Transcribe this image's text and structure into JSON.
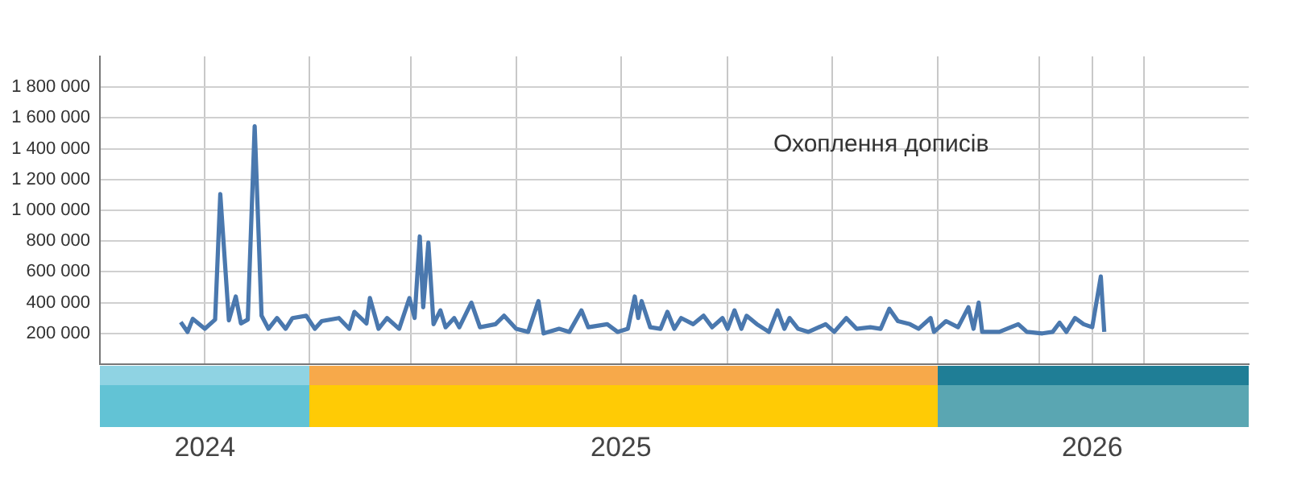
{
  "chart_data": {
    "type": "line",
    "title": "Охоплення дописів",
    "x": [
      "2024-10-18",
      "2024-10-22",
      "2024-10-25",
      "2024-11-01",
      "2024-11-07",
      "2024-11-10",
      "2024-11-15",
      "2024-11-19",
      "2024-11-22",
      "2024-11-26",
      "2024-11-30",
      "2024-12-04",
      "2024-12-08",
      "2024-12-13",
      "2024-12-18",
      "2024-12-22",
      "2024-12-30",
      "2025-01-04",
      "2025-01-08",
      "2025-01-18",
      "2025-01-24",
      "2025-01-27",
      "2025-02-03",
      "2025-02-05",
      "2025-02-10",
      "2025-02-15",
      "2025-02-22",
      "2025-02-28",
      "2025-03-03",
      "2025-03-06",
      "2025-03-08",
      "2025-03-11",
      "2025-03-14",
      "2025-03-18",
      "2025-03-21",
      "2025-03-26",
      "2025-03-29",
      "2025-04-05",
      "2025-04-10",
      "2025-04-19",
      "2025-04-24",
      "2025-05-01",
      "2025-05-08",
      "2025-05-14",
      "2025-05-17",
      "2025-05-26",
      "2025-06-01",
      "2025-06-08",
      "2025-06-12",
      "2025-06-23",
      "2025-06-29",
      "2025-07-05",
      "2025-07-09",
      "2025-07-11",
      "2025-07-13",
      "2025-07-18",
      "2025-07-24",
      "2025-07-28",
      "2025-08-01",
      "2025-08-05",
      "2025-08-12",
      "2025-08-18",
      "2025-08-23",
      "2025-08-29",
      "2025-09-01",
      "2025-09-05",
      "2025-09-09",
      "2025-09-12",
      "2025-09-18",
      "2025-09-25",
      "2025-09-30",
      "2025-10-04",
      "2025-10-07",
      "2025-10-12",
      "2025-10-18",
      "2025-10-28",
      "2025-11-02",
      "2025-11-09",
      "2025-11-15",
      "2025-11-23",
      "2025-11-29",
      "2025-12-04",
      "2025-12-09",
      "2025-12-16",
      "2025-12-21",
      "2025-12-28",
      "2025-12-30",
      "2026-01-06",
      "2026-01-13",
      "2026-01-19",
      "2026-01-22",
      "2026-01-25",
      "2026-01-27",
      "2026-02-06",
      "2026-02-17",
      "2026-02-22",
      "2026-03-03",
      "2026-03-09",
      "2026-03-13",
      "2026-03-17",
      "2026-03-22",
      "2026-03-27",
      "2026-04-01",
      "2026-04-06",
      "2026-04-08"
    ],
    "series": [
      {
        "color": "#4a78ae",
        "values": [
          274000,
          210000,
          295000,
          230000,
          290000,
          1105000,
          285000,
          440000,
          265000,
          290000,
          1547000,
          315000,
          230000,
          300000,
          230000,
          300000,
          315000,
          230000,
          280000,
          300000,
          230000,
          340000,
          265000,
          430000,
          230000,
          300000,
          230000,
          430000,
          300000,
          830000,
          370000,
          790000,
          260000,
          350000,
          240000,
          300000,
          240000,
          400000,
          240000,
          260000,
          315000,
          230000,
          210000,
          410000,
          200000,
          230000,
          210000,
          350000,
          240000,
          260000,
          210000,
          230000,
          440000,
          300000,
          410000,
          240000,
          230000,
          340000,
          230000,
          300000,
          260000,
          315000,
          240000,
          300000,
          230000,
          350000,
          230000,
          315000,
          260000,
          210000,
          350000,
          230000,
          300000,
          230000,
          210000,
          260000,
          210000,
          300000,
          230000,
          240000,
          230000,
          360000,
          280000,
          260000,
          230000,
          300000,
          210000,
          280000,
          240000,
          370000,
          230000,
          400000,
          210000,
          210000,
          260000,
          210000,
          200000,
          210000,
          270000,
          210000,
          300000,
          260000,
          240000,
          570000,
          210000
        ]
      }
    ],
    "xlim": [
      "2024-09-01",
      "2026-07-01"
    ],
    "xticks": [
      {
        "value": "2024-11-01",
        "label": "2024"
      },
      {
        "value": "2025-01-01",
        "label": null
      },
      {
        "value": "2025-03-01",
        "label": null
      },
      {
        "value": "2025-05-01",
        "label": null
      },
      {
        "value": "2025-07-01",
        "label": "2025"
      },
      {
        "value": "2025-09-01",
        "label": null
      },
      {
        "value": "2025-11-01",
        "label": null
      },
      {
        "value": "2026-01-01",
        "label": null
      },
      {
        "value": "2026-03-01",
        "label": null
      },
      {
        "value": "2026-04-01",
        "label": "2026"
      },
      {
        "value": "2026-05-01",
        "label": null
      }
    ],
    "ylim": [
      0,
      2000000
    ],
    "yticks": [
      {
        "value": 200000,
        "label": "200 000"
      },
      {
        "value": 400000,
        "label": "400 000"
      },
      {
        "value": 600000,
        "label": "600 000"
      },
      {
        "value": 800000,
        "label": "800 000"
      },
      {
        "value": 1000000,
        "label": "1 000 000"
      },
      {
        "value": 1200000,
        "label": "1 200 000"
      },
      {
        "value": 1400000,
        "label": "1 400 000"
      },
      {
        "value": 1600000,
        "label": "1 600 000"
      },
      {
        "value": 1800000,
        "label": "1 800 000"
      }
    ],
    "grid": true,
    "legend": false,
    "marker": "none",
    "line_style": "solid"
  }
}
